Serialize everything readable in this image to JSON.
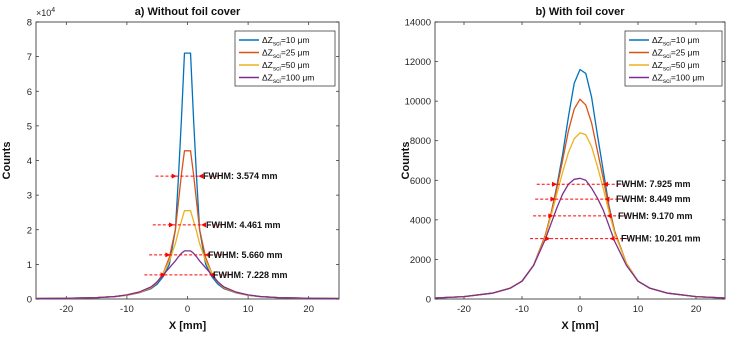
{
  "chart_data": [
    {
      "type": "line",
      "title": "a) Without foil cover",
      "xlabel": "X [mm]",
      "ylabel": "Counts",
      "xlim": [
        -25,
        25
      ],
      "ylim": [
        0,
        80000
      ],
      "xticks": [
        -20,
        -10,
        0,
        10,
        20
      ],
      "xtick_labels": [
        "-20",
        "-10",
        "0",
        "10",
        "20"
      ],
      "yticks": [
        0,
        10000,
        20000,
        30000,
        40000,
        50000,
        60000,
        70000,
        80000
      ],
      "ytick_labels": [
        "0",
        "1",
        "2",
        "3",
        "4",
        "5",
        "6",
        "7",
        "8"
      ],
      "y_exponent": "×10",
      "y_exponent_power": "4",
      "legend_position": "top-right",
      "x": [
        -25,
        -20,
        -15,
        -12,
        -10,
        -8,
        -6,
        -5,
        -4,
        -3,
        -2,
        -1.5,
        -1,
        -0.5,
        0,
        0.5,
        1,
        1.5,
        2,
        3,
        4,
        5,
        6,
        8,
        10,
        12,
        15,
        20,
        25
      ],
      "series": [
        {
          "name": "ΔZ",
          "sub": "sci",
          "suffix": "=10 μm",
          "color": "#0072BD",
          "values": [
            150,
            200,
            400,
            700,
            1100,
            1800,
            3000,
            4300,
            6500,
            10000,
            20000,
            35000,
            52000,
            71000,
            71000,
            71000,
            52000,
            35000,
            20000,
            10000,
            6500,
            4300,
            3000,
            1800,
            1100,
            700,
            400,
            200,
            150
          ]
        },
        {
          "name": "ΔZ",
          "sub": "sci",
          "suffix": "=25 μm",
          "color": "#D95319",
          "values": [
            150,
            200,
            400,
            700,
            1100,
            1800,
            3200,
            4800,
            7500,
            12000,
            20000,
            28000,
            36000,
            42800,
            42800,
            42800,
            36000,
            28000,
            20000,
            12000,
            7500,
            4800,
            3200,
            1800,
            1100,
            700,
            400,
            200,
            150
          ]
        },
        {
          "name": "ΔZ",
          "sub": "sci",
          "suffix": "=50 μm",
          "color": "#EDB120",
          "values": [
            150,
            200,
            400,
            700,
            1100,
            1900,
            3300,
            4900,
            7500,
            11000,
            16000,
            19500,
            22500,
            25500,
            25500,
            25500,
            22500,
            19500,
            16000,
            11000,
            7500,
            4900,
            3300,
            1900,
            1100,
            700,
            400,
            200,
            150
          ]
        },
        {
          "name": "ΔZ",
          "sub": "sci",
          "suffix": "=100 μm",
          "color": "#7E2F8E",
          "values": [
            150,
            200,
            400,
            700,
            1200,
            2000,
            3500,
            5000,
            7000,
            9000,
            11000,
            12200,
            13200,
            13900,
            13900,
            13900,
            13200,
            12200,
            11000,
            9000,
            7000,
            5000,
            3500,
            2000,
            1200,
            700,
            400,
            200,
            150
          ]
        }
      ],
      "annotations": [
        {
          "text": "FWHM: 3.574 mm",
          "fwhm": 3.574,
          "y": 35500
        },
        {
          "text": "FWHM: 4.461 mm",
          "fwhm": 4.461,
          "y": 21400
        },
        {
          "text": "FWHM: 5.660 mm",
          "fwhm": 5.66,
          "y": 12750
        },
        {
          "text": "FWHM: 7.228 mm",
          "fwhm": 7.228,
          "y": 6950
        }
      ]
    },
    {
      "type": "line",
      "title": "b) With foil cover",
      "xlabel": "X [mm]",
      "ylabel": "Counts",
      "xlim": [
        -25,
        25
      ],
      "ylim": [
        0,
        14000
      ],
      "xticks": [
        -20,
        -10,
        0,
        10,
        20
      ],
      "xtick_labels": [
        "-20",
        "-10",
        "0",
        "10",
        "20"
      ],
      "yticks": [
        0,
        2000,
        4000,
        6000,
        8000,
        10000,
        12000,
        14000
      ],
      "ytick_labels": [
        "0",
        "2000",
        "4000",
        "6000",
        "8000",
        "10000",
        "12000",
        "14000"
      ],
      "legend_position": "top-right",
      "x": [
        -25,
        -20,
        -15,
        -12,
        -10,
        -8,
        -6,
        -5,
        -4,
        -3,
        -2,
        -1,
        0,
        1,
        2,
        3,
        4,
        5,
        6,
        8,
        10,
        12,
        15,
        20,
        25
      ],
      "series": [
        {
          "name": "ΔZ",
          "sub": "sci",
          "suffix": "=10 μm",
          "color": "#0072BD",
          "values": [
            50,
            120,
            300,
            550,
            900,
            1700,
            3200,
            4300,
            5700,
            7300,
            9200,
            10900,
            11600,
            11400,
            10200,
            8300,
            6500,
            4700,
            3400,
            1800,
            900,
            550,
            300,
            120,
            50
          ]
        },
        {
          "name": "ΔZ",
          "sub": "sci",
          "suffix": "=25 μm",
          "color": "#D95319",
          "values": [
            50,
            120,
            300,
            550,
            900,
            1700,
            3200,
            4300,
            5600,
            7000,
            8500,
            9600,
            10100,
            9800,
            8900,
            7500,
            6100,
            4600,
            3400,
            1800,
            900,
            550,
            300,
            120,
            50
          ]
        },
        {
          "name": "ΔZ",
          "sub": "sci",
          "suffix": "=50 μm",
          "color": "#EDB120",
          "values": [
            50,
            120,
            300,
            550,
            900,
            1700,
            3100,
            4200,
            5300,
            6400,
            7400,
            8100,
            8400,
            8300,
            7700,
            6700,
            5600,
            4400,
            3300,
            1800,
            900,
            550,
            300,
            120,
            50
          ]
        },
        {
          "name": "ΔZ",
          "sub": "sci",
          "suffix": "=100 μm",
          "color": "#7E2F8E",
          "values": [
            50,
            120,
            300,
            550,
            900,
            1700,
            3000,
            3800,
            4600,
            5300,
            5800,
            6050,
            6100,
            6000,
            5600,
            5100,
            4500,
            3700,
            2900,
            1700,
            900,
            550,
            300,
            120,
            50
          ]
        }
      ],
      "annotations": [
        {
          "text": "FWHM: 7.925 mm",
          "fwhm": 7.925,
          "y": 5800
        },
        {
          "text": "FWHM: 8.449 mm",
          "fwhm": 8.449,
          "y": 5050
        },
        {
          "text": "FWHM: 9.170 mm",
          "fwhm": 9.17,
          "y": 4200
        },
        {
          "text": "FWHM: 10.201 mm",
          "fwhm": 10.201,
          "y": 3050
        }
      ]
    }
  ]
}
